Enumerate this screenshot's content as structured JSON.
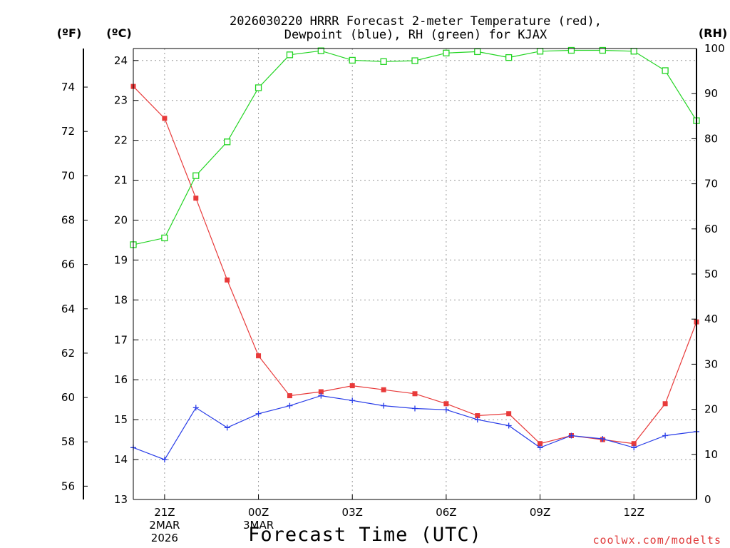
{
  "chart_data": {
    "type": "line",
    "title": "2026030220 HRRR Forecast 2-meter Temperature (red),",
    "subtitle": "Dewpoint (blue), RH (green) for KJAX",
    "xlabel": "Forecast Time (UTC)",
    "credit": "coolwx.com/modelts",
    "units": {
      "fahrenheit": "(ºF)",
      "celsius": "(ºC)",
      "rh": "(RH)"
    },
    "x_hours": [
      20,
      21,
      22,
      23,
      24,
      25,
      26,
      27,
      28,
      29,
      30,
      31,
      32,
      33,
      34,
      35,
      36,
      37,
      38
    ],
    "xlim": [
      20,
      38
    ],
    "x_ticks": [
      {
        "hour": 21,
        "label": "21Z",
        "line2": "2MAR",
        "line3": "2026"
      },
      {
        "hour": 24,
        "label": "00Z",
        "line2": "3MAR",
        "line3": ""
      },
      {
        "hour": 27,
        "label": "03Z",
        "line2": "",
        "line3": ""
      },
      {
        "hour": 30,
        "label": "06Z",
        "line2": "",
        "line3": ""
      },
      {
        "hour": 33,
        "label": "09Z",
        "line2": "",
        "line3": ""
      },
      {
        "hour": 36,
        "label": "12Z",
        "line2": "",
        "line3": ""
      }
    ],
    "celsius_axis": {
      "ylim": [
        13,
        24.3
      ],
      "ticks": [
        13,
        14,
        15,
        16,
        17,
        18,
        19,
        20,
        21,
        22,
        23,
        24
      ]
    },
    "fahrenheit_axis": {
      "ticks": [
        56,
        58,
        60,
        62,
        64,
        66,
        68,
        70,
        72,
        74
      ]
    },
    "rh_axis": {
      "ylim": [
        0,
        100
      ],
      "ticks": [
        0,
        10,
        20,
        30,
        40,
        50,
        60,
        70,
        80,
        90,
        100
      ]
    },
    "series": [
      {
        "name": "Temperature",
        "color": "#e83a3a",
        "marker": "filled-square",
        "axis": "celsius",
        "values": [
          23.35,
          22.55,
          20.55,
          18.5,
          16.6,
          15.6,
          15.7,
          15.85,
          15.75,
          15.65,
          15.4,
          15.1,
          15.15,
          14.4,
          14.6,
          14.5,
          14.4,
          15.4,
          17.45
        ]
      },
      {
        "name": "Dewpoint",
        "color": "#2a3ee8",
        "marker": "plus",
        "axis": "celsius",
        "values": [
          14.3,
          14.0,
          15.3,
          14.8,
          15.15,
          15.35,
          15.6,
          15.48,
          15.35,
          15.28,
          15.25,
          15.0,
          14.85,
          14.3,
          14.6,
          14.52,
          14.3,
          14.6,
          14.7
        ]
      },
      {
        "name": "RH",
        "color": "#22d422",
        "marker": "open-square",
        "axis": "rh",
        "values": [
          56.5,
          58.0,
          71.8,
          79.3,
          91.3,
          98.6,
          99.5,
          97.4,
          97.1,
          97.3,
          99.0,
          99.3,
          98.0,
          99.4,
          99.6,
          99.6,
          99.4,
          95.1,
          84.0
        ]
      }
    ]
  }
}
